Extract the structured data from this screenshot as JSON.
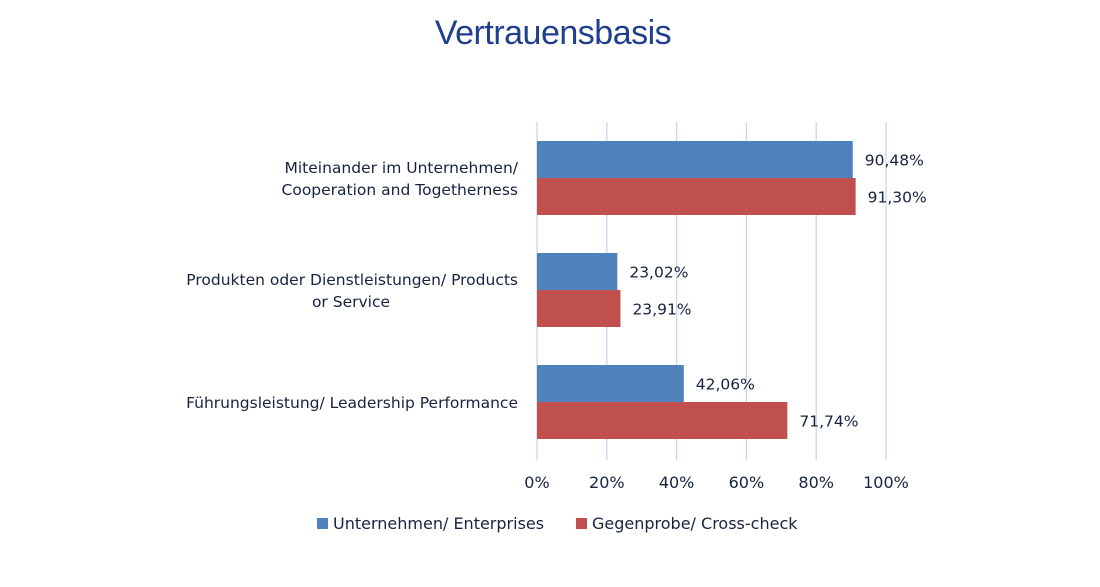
{
  "chart_data": {
    "type": "bar",
    "orientation": "horizontal",
    "title": "Vertrauensbasis",
    "categories": [
      [
        "Miteinander im Unternehmen/",
        "Cooperation and Togetherness"
      ],
      [
        "Produkten oder Dienstleistungen/ Products",
        "or Service"
      ],
      [
        "Führungsleistung/ Leadership Performance"
      ]
    ],
    "series": [
      {
        "name": "Unternehmen/ Enterprises",
        "color": "#4f81bd",
        "values": [
          90.48,
          23.02,
          42.06
        ],
        "labels": [
          "90,48%",
          "23,02%",
          "42,06%"
        ]
      },
      {
        "name": "Gegenprobe/ Cross-check",
        "color": "#c0504d",
        "values": [
          91.3,
          23.91,
          71.74
        ],
        "labels": [
          "91,30%",
          "23,91%",
          "71,74%"
        ]
      }
    ],
    "x_ticks": [
      "0%",
      "20%",
      "40%",
      "60%",
      "80%",
      "100%"
    ],
    "xlim": [
      0,
      100
    ],
    "grid": "vertical",
    "legend_position": "bottom"
  },
  "gridline_color": "#c6d9ec"
}
